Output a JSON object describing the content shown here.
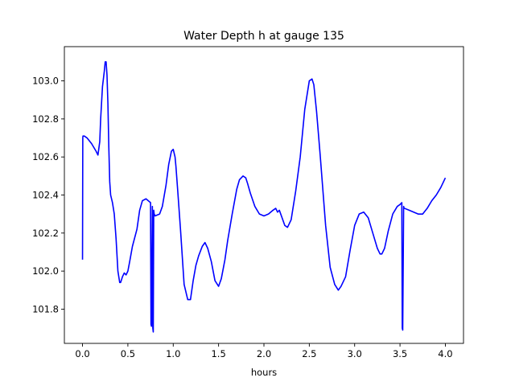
{
  "chart_data": {
    "type": "line",
    "title": "Water Depth h at gauge 135",
    "xlabel": "hours",
    "ylabel": "",
    "xlim": [
      -0.2,
      4.2
    ],
    "ylim": [
      101.62,
      103.18
    ],
    "xticks": [
      0.0,
      0.5,
      1.0,
      1.5,
      2.0,
      2.5,
      3.0,
      3.5,
      4.0
    ],
    "xtick_labels": [
      "0.0",
      "0.5",
      "1.0",
      "1.5",
      "2.0",
      "2.5",
      "3.0",
      "3.5",
      "4.0"
    ],
    "yticks": [
      101.8,
      102.0,
      102.2,
      102.4,
      102.6,
      102.8,
      103.0
    ],
    "ytick_labels": [
      "101.8",
      "102.0",
      "102.2",
      "102.4",
      "102.6",
      "102.8",
      "103.0"
    ],
    "grid": false,
    "legend": "none",
    "series": [
      {
        "color": "#0000ff",
        "x": [
          0.0,
          0.003,
          0.005,
          0.02,
          0.05,
          0.1,
          0.15,
          0.17,
          0.19,
          0.2,
          0.22,
          0.24,
          0.25,
          0.26,
          0.27,
          0.28,
          0.29,
          0.3,
          0.31,
          0.33,
          0.35,
          0.37,
          0.39,
          0.41,
          0.42,
          0.44,
          0.46,
          0.48,
          0.5,
          0.52,
          0.55,
          0.6,
          0.63,
          0.66,
          0.7,
          0.75,
          0.755,
          0.76,
          0.77,
          0.775,
          0.78,
          0.785,
          0.79,
          0.8,
          0.85,
          0.88,
          0.92,
          0.95,
          0.98,
          1.0,
          1.02,
          1.03,
          1.05,
          1.08,
          1.12,
          1.16,
          1.19,
          1.22,
          1.25,
          1.28,
          1.32,
          1.35,
          1.38,
          1.42,
          1.46,
          1.5,
          1.53,
          1.57,
          1.6,
          1.65,
          1.7,
          1.73,
          1.77,
          1.8,
          1.82,
          1.85,
          1.9,
          1.95,
          2.0,
          2.05,
          2.1,
          2.13,
          2.15,
          2.17,
          2.2,
          2.23,
          2.26,
          2.3,
          2.32,
          2.35,
          2.4,
          2.45,
          2.5,
          2.53,
          2.55,
          2.58,
          2.62,
          2.68,
          2.73,
          2.78,
          2.82,
          2.85,
          2.9,
          2.95,
          3.0,
          3.05,
          3.1,
          3.15,
          3.2,
          3.25,
          3.28,
          3.3,
          3.33,
          3.37,
          3.42,
          3.47,
          3.5,
          3.52,
          3.525,
          3.53,
          3.54,
          3.545,
          3.55,
          3.6,
          3.65,
          3.7,
          3.75,
          3.8,
          3.85,
          3.9,
          3.95,
          4.0
        ],
        "y": [
          102.06,
          102.7,
          102.71,
          102.71,
          102.7,
          102.67,
          102.63,
          102.61,
          102.68,
          102.8,
          102.97,
          103.05,
          103.1,
          103.1,
          103.03,
          102.88,
          102.65,
          102.47,
          102.4,
          102.36,
          102.3,
          102.17,
          102.0,
          101.94,
          101.94,
          101.97,
          101.99,
          101.98,
          102.0,
          102.05,
          102.13,
          102.22,
          102.32,
          102.37,
          102.38,
          102.36,
          101.72,
          101.71,
          102.34,
          101.7,
          101.68,
          102.32,
          102.3,
          102.29,
          102.3,
          102.34,
          102.45,
          102.56,
          102.63,
          102.64,
          102.6,
          102.55,
          102.42,
          102.22,
          101.93,
          101.85,
          101.85,
          101.95,
          102.03,
          102.08,
          102.13,
          102.15,
          102.12,
          102.05,
          101.95,
          101.92,
          101.96,
          102.06,
          102.16,
          102.3,
          102.43,
          102.48,
          102.5,
          102.49,
          102.46,
          102.41,
          102.34,
          102.3,
          102.29,
          102.3,
          102.32,
          102.33,
          102.31,
          102.32,
          102.28,
          102.24,
          102.23,
          102.27,
          102.33,
          102.42,
          102.6,
          102.85,
          103.0,
          103.01,
          102.98,
          102.84,
          102.61,
          102.24,
          102.02,
          101.93,
          101.9,
          101.92,
          101.97,
          102.11,
          102.24,
          102.3,
          102.31,
          102.28,
          102.2,
          102.12,
          102.09,
          102.09,
          102.12,
          102.21,
          102.3,
          102.34,
          102.35,
          102.36,
          101.7,
          101.69,
          102.34,
          102.33,
          102.33,
          102.32,
          102.31,
          102.3,
          102.3,
          102.33,
          102.37,
          102.4,
          102.44,
          102.49
        ]
      }
    ]
  }
}
